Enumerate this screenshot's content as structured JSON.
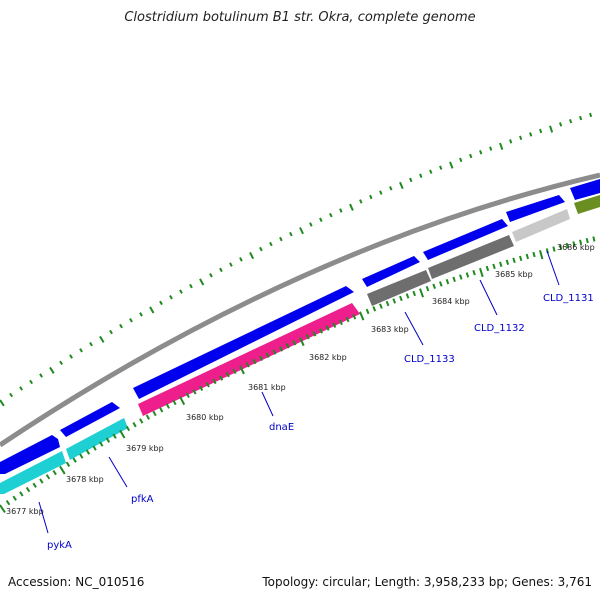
{
  "title": "Clostridium botulinum B1 str. Okra, complete genome",
  "accession_label": "Accession: NC_010516",
  "info_label": "Topology: circular; Length: 3,958,233 bp; Genes: 3,761",
  "colors": {
    "backbone": "#8c8c8c",
    "forward_gene": "#0000ee",
    "tick_dots": "#1f8a1f",
    "label_link": "#0000cc",
    "pink": "#ee1e8c",
    "cyan": "#1ecfd3",
    "dark_gray": "#6e6e6e",
    "light_gray": "#c8c8c8",
    "olive": "#6b8e23"
  },
  "scale_labels": [
    "3677 kbp",
    "3678 kbp",
    "3679 kbp",
    "3680 kbp",
    "3681 kbp",
    "3682 kbp",
    "3683 kbp",
    "3684 kbp",
    "3685 kbp",
    "3686 kbp"
  ],
  "gene_labels": [
    "pykA",
    "pfkA",
    "dnaE",
    "CLD_1133",
    "CLD_1132",
    "CLD_1131"
  ]
}
